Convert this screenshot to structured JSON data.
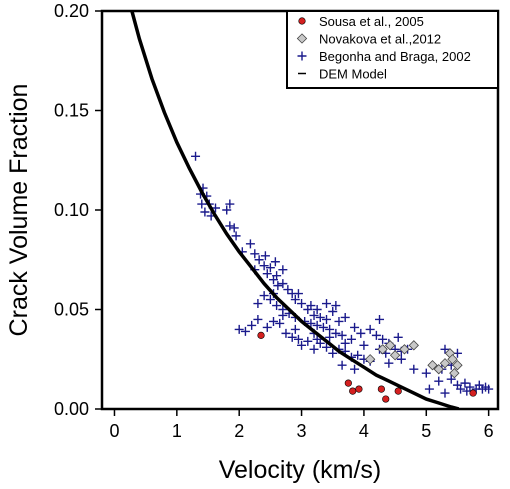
{
  "chart_data": {
    "type": "scatter",
    "xlabel": "Velocity (km/s)",
    "ylabel": "Crack Volume Fraction",
    "xlim": [
      -0.2,
      6.15
    ],
    "ylim": [
      0,
      0.2
    ],
    "x_ticks": [
      {
        "value": 0,
        "label": "0"
      },
      {
        "value": 1,
        "label": "1"
      },
      {
        "value": 2,
        "label": "2"
      },
      {
        "value": 3,
        "label": "3"
      },
      {
        "value": 4,
        "label": "4"
      },
      {
        "value": 5,
        "label": "5"
      },
      {
        "value": 6,
        "label": "6"
      }
    ],
    "y_ticks": [
      {
        "value": 0.0,
        "label": "0.00"
      },
      {
        "value": 0.05,
        "label": "0.05"
      },
      {
        "value": 0.1,
        "label": "0.10"
      },
      {
        "value": 0.15,
        "label": "0.15"
      },
      {
        "value": 0.2,
        "label": "0.20"
      }
    ],
    "legend_position": "top-right",
    "series": [
      {
        "name": "Sousa et al., 2005",
        "marker": "circle",
        "color": "#d42020",
        "points": [
          [
            2.35,
            0.037
          ],
          [
            3.75,
            0.013
          ],
          [
            3.82,
            0.009
          ],
          [
            3.92,
            0.01
          ],
          [
            4.28,
            0.01
          ],
          [
            4.35,
            0.005
          ],
          [
            4.55,
            0.009
          ],
          [
            5.75,
            0.008
          ]
        ]
      },
      {
        "name": "Novakova et al.,2012",
        "marker": "diamond",
        "color": "#c8c8c8",
        "points": [
          [
            4.1,
            0.025
          ],
          [
            4.3,
            0.03
          ],
          [
            4.42,
            0.032
          ],
          [
            4.5,
            0.027
          ],
          [
            4.65,
            0.03
          ],
          [
            4.8,
            0.032
          ],
          [
            5.1,
            0.022
          ],
          [
            5.2,
            0.02
          ],
          [
            5.3,
            0.023
          ],
          [
            5.38,
            0.028
          ],
          [
            5.42,
            0.025
          ],
          [
            5.45,
            0.018
          ],
          [
            5.5,
            0.022
          ]
        ]
      },
      {
        "name": "Begonha and Braga, 2002",
        "marker": "plus",
        "color": "#1a1a8c",
        "points": [
          [
            1.3,
            0.127
          ],
          [
            1.42,
            0.111
          ],
          [
            1.48,
            0.107
          ],
          [
            1.38,
            0.108
          ],
          [
            1.4,
            0.103
          ],
          [
            1.45,
            0.099
          ],
          [
            1.52,
            0.103
          ],
          [
            1.55,
            0.097
          ],
          [
            1.62,
            0.101
          ],
          [
            1.8,
            0.1
          ],
          [
            1.85,
            0.103
          ],
          [
            1.92,
            0.091
          ],
          [
            1.95,
            0.087
          ],
          [
            2.05,
            0.079
          ],
          [
            2.18,
            0.083
          ],
          [
            2.25,
            0.07
          ],
          [
            1.85,
            0.092
          ],
          [
            2.42,
            0.077
          ],
          [
            2.5,
            0.071
          ],
          [
            2.58,
            0.074
          ],
          [
            2.6,
            0.067
          ],
          [
            2.7,
            0.07
          ],
          [
            2.25,
            0.078
          ],
          [
            2.32,
            0.075
          ],
          [
            2.4,
            0.072
          ],
          [
            2.45,
            0.068
          ],
          [
            2.55,
            0.065
          ],
          [
            2.62,
            0.062
          ],
          [
            2.7,
            0.063
          ],
          [
            2.78,
            0.06
          ],
          [
            2.85,
            0.058
          ],
          [
            2.9,
            0.055
          ],
          [
            2.95,
            0.058
          ],
          [
            3.0,
            0.053
          ],
          [
            3.1,
            0.05
          ],
          [
            3.15,
            0.052
          ],
          [
            3.2,
            0.047
          ],
          [
            3.25,
            0.05
          ],
          [
            3.3,
            0.046
          ],
          [
            3.4,
            0.053
          ],
          [
            3.5,
            0.049
          ],
          [
            3.55,
            0.052
          ],
          [
            3.6,
            0.044
          ],
          [
            3.7,
            0.046
          ],
          [
            3.85,
            0.041
          ],
          [
            3.95,
            0.038
          ],
          [
            4.1,
            0.04
          ],
          [
            4.2,
            0.037
          ],
          [
            4.3,
            0.035
          ],
          [
            4.4,
            0.033
          ],
          [
            2.3,
            0.053
          ],
          [
            2.4,
            0.057
          ],
          [
            2.5,
            0.055
          ],
          [
            2.6,
            0.052
          ],
          [
            2.7,
            0.05
          ],
          [
            2.8,
            0.048
          ],
          [
            2.9,
            0.046
          ],
          [
            3.05,
            0.044
          ],
          [
            3.15,
            0.043
          ],
          [
            3.25,
            0.042
          ],
          [
            3.35,
            0.041
          ],
          [
            3.45,
            0.04
          ],
          [
            3.55,
            0.038
          ],
          [
            3.65,
            0.037
          ],
          [
            2.0,
            0.04
          ],
          [
            2.1,
            0.039
          ],
          [
            2.2,
            0.042
          ],
          [
            2.3,
            0.045
          ],
          [
            2.45,
            0.041
          ],
          [
            2.55,
            0.044
          ],
          [
            2.65,
            0.043
          ],
          [
            2.75,
            0.038
          ],
          [
            2.85,
            0.036
          ],
          [
            2.95,
            0.035
          ],
          [
            3.0,
            0.032
          ],
          [
            3.1,
            0.034
          ],
          [
            3.2,
            0.03
          ],
          [
            3.3,
            0.033
          ],
          [
            3.4,
            0.031
          ],
          [
            3.5,
            0.028
          ],
          [
            3.6,
            0.03
          ],
          [
            3.7,
            0.029
          ],
          [
            3.8,
            0.026
          ],
          [
            3.9,
            0.027
          ],
          [
            4.0,
            0.025
          ],
          [
            4.1,
            0.024
          ],
          [
            3.7,
            0.033
          ],
          [
            3.8,
            0.035
          ],
          [
            4.0,
            0.032
          ],
          [
            4.25,
            0.03
          ],
          [
            4.35,
            0.028
          ],
          [
            4.5,
            0.03
          ],
          [
            4.6,
            0.029
          ],
          [
            4.7,
            0.03
          ],
          [
            3.25,
            0.035
          ],
          [
            3.45,
            0.036
          ],
          [
            3.65,
            0.022
          ],
          [
            3.85,
            0.02
          ],
          [
            4.4,
            0.023
          ],
          [
            4.6,
            0.025
          ],
          [
            4.8,
            0.02
          ],
          [
            5.0,
            0.018
          ],
          [
            5.2,
            0.014
          ],
          [
            5.25,
            0.02
          ],
          [
            5.4,
            0.015
          ],
          [
            5.5,
            0.012
          ],
          [
            5.55,
            0.01
          ],
          [
            5.62,
            0.013
          ],
          [
            5.7,
            0.011
          ],
          [
            5.8,
            0.01
          ],
          [
            5.85,
            0.012
          ],
          [
            5.9,
            0.01
          ],
          [
            5.95,
            0.011
          ],
          [
            6.0,
            0.01
          ],
          [
            5.65,
            0.009
          ],
          [
            5.3,
            0.008
          ],
          [
            5.05,
            0.01
          ],
          [
            5.4,
            0.022
          ],
          [
            5.5,
            0.028
          ],
          [
            5.3,
            0.03
          ],
          [
            4.25,
            0.045
          ],
          [
            4.55,
            0.036
          ],
          [
            3.4,
            0.045
          ],
          [
            3.2,
            0.038
          ],
          [
            2.9,
            0.04
          ],
          [
            2.7,
            0.047
          ],
          [
            2.55,
            0.058
          ]
        ]
      },
      {
        "name": "DEM Model",
        "marker": "line",
        "color": "#000000",
        "points": [
          [
            0.28,
            0.2
          ],
          [
            0.4,
            0.186
          ],
          [
            0.6,
            0.166
          ],
          [
            0.8,
            0.149
          ],
          [
            1.0,
            0.134
          ],
          [
            1.2,
            0.121
          ],
          [
            1.4,
            0.109
          ],
          [
            1.6,
            0.098
          ],
          [
            1.8,
            0.088
          ],
          [
            2.0,
            0.079
          ],
          [
            2.2,
            0.071
          ],
          [
            2.4,
            0.063
          ],
          [
            2.6,
            0.056
          ],
          [
            2.8,
            0.05
          ],
          [
            3.0,
            0.044
          ],
          [
            3.2,
            0.039
          ],
          [
            3.4,
            0.034
          ],
          [
            3.6,
            0.029
          ],
          [
            3.8,
            0.025
          ],
          [
            4.0,
            0.021
          ],
          [
            4.2,
            0.017
          ],
          [
            4.4,
            0.014
          ],
          [
            4.6,
            0.011
          ],
          [
            4.8,
            0.008
          ],
          [
            5.0,
            0.005
          ],
          [
            5.2,
            0.003
          ],
          [
            5.4,
            0.001
          ],
          [
            5.52,
            0.0
          ]
        ]
      }
    ]
  }
}
